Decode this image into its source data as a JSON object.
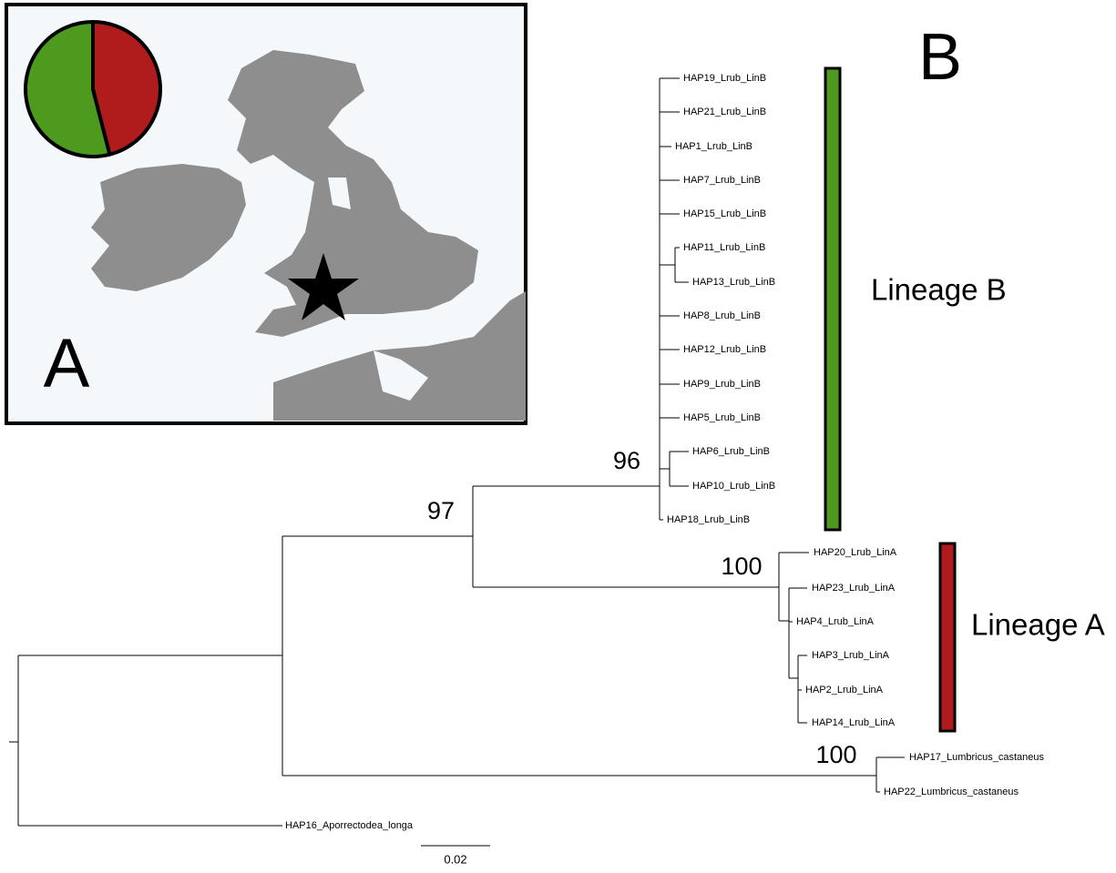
{
  "panel_a": {
    "label": "A",
    "pie": {
      "type": "pie",
      "values": [
        46,
        54
      ],
      "colors": [
        "#b01c1c",
        "#4d9a1f"
      ]
    }
  },
  "panel_b": {
    "label": "B",
    "tips": [
      "HAP19_Lrub_LinB",
      "HAP21_Lrub_LinB",
      "HAP1_Lrub_LinB",
      "HAP7_Lrub_LinB",
      "HAP15_Lrub_LinB",
      "HAP11_Lrub_LinB",
      "HAP13_Lrub_LinB",
      "HAP8_Lrub_LinB",
      "HAP12_Lrub_LinB",
      "HAP9_Lrub_LinB",
      "HAP5_Lrub_LinB",
      "HAP6_Lrub_LinB",
      "HAP10_Lrub_LinB",
      "HAP18_Lrub_LinB",
      "HAP20_Lrub_LinA",
      "HAP23_Lrub_LinA",
      "HAP4_Lrub_LinA",
      "HAP3_Lrub_LinA",
      "HAP2_Lrub_LinA",
      "HAP14_Lrub_LinA",
      "HAP17_Lumbricus_castaneus",
      "HAP22_Lumbricus_castaneus",
      "HAP16_Aporrectodea_longa"
    ],
    "support": [
      96,
      97,
      100,
      100
    ],
    "lineages": [
      "Lineage B",
      "Lineage A"
    ],
    "scale_bar": "0.02"
  }
}
